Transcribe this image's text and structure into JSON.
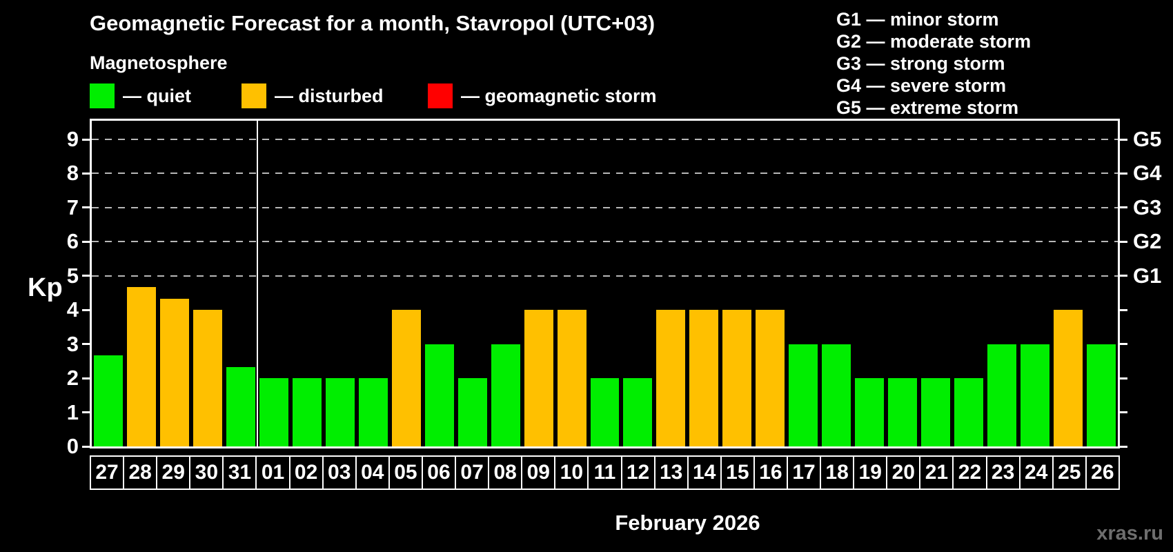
{
  "title": "Geomagnetic Forecast for a month, Stavropol (UTC+03)",
  "subtitle": "Magnetosphere",
  "legend": {
    "items": [
      {
        "key": "quiet",
        "label": "— quiet",
        "color": "#00ee00"
      },
      {
        "key": "disturbed",
        "label": "— disturbed",
        "color": "#ffc000"
      },
      {
        "key": "storm",
        "label": "— geomagnetic storm",
        "color": "#ff0000"
      }
    ]
  },
  "g_legend": [
    "G1 — minor storm",
    "G2 — moderate storm",
    "G3 — strong storm",
    "G4 — severe storm",
    "G5 — extreme storm"
  ],
  "watermark": "xras.ru",
  "chart_data": {
    "type": "bar",
    "title": "Geomagnetic Forecast for a month, Stavropol (UTC+03)",
    "xlabel": "February 2026",
    "ylabel": "Kp",
    "ylim": [
      0,
      9
    ],
    "y_ticks": [
      0,
      1,
      2,
      3,
      4,
      5,
      6,
      7,
      8,
      9
    ],
    "grid_levels": [
      5,
      6,
      7,
      8,
      9
    ],
    "grid": "dashed-horizontal",
    "right_axis": [
      {
        "label": "G1",
        "kp": 5
      },
      {
        "label": "G2",
        "kp": 6
      },
      {
        "label": "G3",
        "kp": 7
      },
      {
        "label": "G4",
        "kp": 8
      },
      {
        "label": "G5",
        "kp": 9
      }
    ],
    "categories": [
      "27",
      "28",
      "29",
      "30",
      "31",
      "01",
      "02",
      "03",
      "04",
      "05",
      "06",
      "07",
      "08",
      "09",
      "10",
      "11",
      "12",
      "13",
      "14",
      "15",
      "16",
      "17",
      "18",
      "19",
      "20",
      "21",
      "22",
      "23",
      "24",
      "25",
      "26"
    ],
    "values": [
      2.67,
      4.67,
      4.33,
      4,
      2.33,
      2,
      2,
      2,
      2,
      4,
      3,
      2,
      3,
      4,
      4,
      2,
      2,
      4,
      4,
      4,
      4,
      3,
      3,
      2,
      2,
      2,
      2,
      3,
      3,
      4,
      3
    ],
    "separator_after_index": 4,
    "state_colors": {
      "quiet": "#00ee00",
      "disturbed": "#ffc000",
      "storm": "#ff0000"
    },
    "state_thresholds": {
      "disturbed_min_kp": 4,
      "storm_min_kp": 5
    }
  }
}
